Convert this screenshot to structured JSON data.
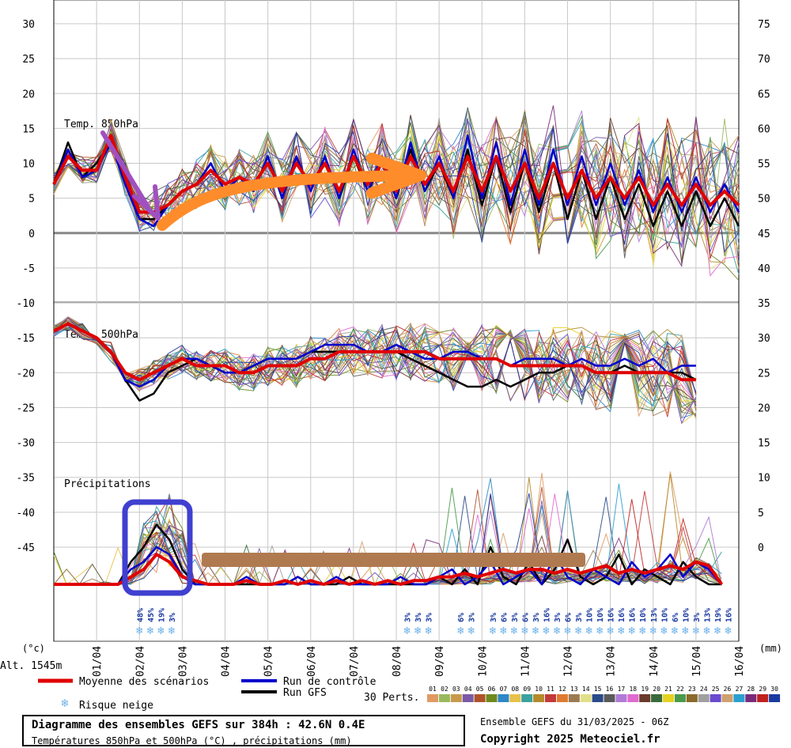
{
  "chart_data": {
    "type": "line",
    "left_unit": "(°c)",
    "right_unit": "(mm)",
    "altitude": "Alt. 1545m",
    "left_ticks": [
      30,
      25,
      20,
      15,
      10,
      5,
      0,
      -5,
      -10,
      -15,
      -20,
      -25,
      -30,
      -35,
      -40,
      -45
    ],
    "right_ticks": [
      75,
      70,
      65,
      60,
      55,
      50,
      45,
      40,
      35,
      30,
      25,
      20,
      15,
      10,
      5,
      0
    ],
    "dates": [
      "01/04",
      "02/04",
      "03/04",
      "04/04",
      "05/04",
      "06/04",
      "07/04",
      "08/04",
      "09/04",
      "10/04",
      "11/04",
      "12/04",
      "13/04",
      "14/04",
      "15/04",
      "16/04"
    ],
    "panel_labels": {
      "t850": "Temp. 850hPa",
      "t500": "Temp. 500hPa",
      "precip": "Précipitations"
    },
    "series": [
      {
        "name": "Moyenne des scénarios",
        "color": "#e00000",
        "t850": [
          7,
          11,
          9,
          9,
          14,
          8,
          3,
          3,
          4,
          6,
          7,
          9,
          7,
          8,
          7,
          10,
          6,
          10,
          7,
          10,
          6,
          11,
          7,
          10,
          6,
          11,
          7,
          10,
          6,
          11,
          6,
          11,
          6,
          10,
          5,
          10,
          5,
          9,
          5,
          8,
          5,
          8,
          4,
          7,
          4,
          7,
          4,
          6,
          4
        ],
        "t500": [
          -14,
          -13,
          -14,
          -15,
          -17,
          -20,
          -21,
          -20,
          -19,
          -18,
          -19,
          -19,
          -19,
          -20,
          -20,
          -19,
          -19,
          -19,
          -18,
          -18,
          -17,
          -17,
          -17,
          -17,
          -17,
          -17,
          -17,
          -18,
          -18,
          -18,
          -18,
          -18,
          -19,
          -19,
          -19,
          -19,
          -19,
          -19,
          -20,
          -20,
          -20,
          -20,
          -20,
          -20,
          -21,
          -21
        ],
        "precip": [
          0,
          0,
          0,
          0,
          0,
          0,
          1,
          2,
          4,
          3,
          1,
          0.5,
          0,
          0,
          0,
          0.5,
          0,
          0,
          0.5,
          0,
          0.5,
          0,
          0.5,
          0,
          0.5,
          0,
          0.5,
          0,
          0.5,
          0.5,
          1,
          1,
          1.5,
          1,
          1.5,
          2,
          1.5,
          2,
          2,
          1.5,
          2,
          1.5,
          2,
          2.5,
          1.5,
          2,
          1.5,
          2,
          2.5,
          2,
          3,
          2.5,
          0
        ]
      },
      {
        "name": "Run de contrôle",
        "color": "#0000cc",
        "t850": [
          7,
          12,
          8,
          9,
          13,
          7,
          2,
          1,
          4,
          6,
          7,
          10,
          6,
          8,
          6,
          11,
          5,
          11,
          6,
          11,
          5,
          12,
          6,
          11,
          5,
          13,
          6,
          11,
          5,
          14,
          5,
          13,
          4,
          12,
          4,
          12,
          4,
          11,
          4,
          10,
          4,
          9,
          3,
          8,
          3,
          8,
          3,
          7,
          3
        ],
        "t500": [
          -14,
          -13,
          -14,
          -15,
          -17,
          -21,
          -22,
          -21,
          -19,
          -18,
          -18,
          -19,
          -20,
          -20,
          -19,
          -18,
          -18,
          -18,
          -17,
          -16,
          -16,
          -16,
          -17,
          -17,
          -16,
          -17,
          -18,
          -18,
          -17,
          -17,
          -18,
          -18,
          -19,
          -18,
          -18,
          -18,
          -19,
          -18,
          -19,
          -19,
          -18,
          -19,
          -18,
          -20,
          -19,
          -19
        ],
        "precip": [
          0,
          0,
          0,
          0,
          0,
          0,
          2,
          3,
          5,
          4,
          1,
          0,
          0,
          0,
          0,
          1,
          0,
          0,
          0,
          1,
          0,
          0,
          1,
          0,
          0,
          0,
          0,
          1,
          0,
          0,
          1,
          2,
          0,
          1,
          3,
          0,
          1,
          2,
          0,
          4,
          1,
          0,
          2,
          1,
          0,
          3,
          1,
          2,
          4,
          1,
          3,
          2,
          0
        ]
      },
      {
        "name": "Run GFS",
        "color": "#000000",
        "t850": [
          7,
          13,
          8,
          10,
          13,
          7,
          2,
          2,
          4,
          6,
          7,
          10,
          6,
          8,
          6,
          11,
          5,
          11,
          6,
          11,
          5,
          11,
          6,
          10,
          5,
          12,
          6,
          10,
          5,
          12,
          4,
          11,
          3,
          10,
          3,
          10,
          2,
          9,
          2,
          8,
          2,
          7,
          1,
          6,
          1,
          6,
          1,
          5,
          1
        ],
        "t500": [
          -14,
          -13,
          -14,
          -15,
          -17,
          -21,
          -24,
          -23,
          -20,
          -19,
          -18,
          -19,
          -20,
          -20,
          -19,
          -18,
          -18,
          -18,
          -17,
          -17,
          -17,
          -17,
          -17,
          -17,
          -17,
          -18,
          -19,
          -20,
          -21,
          -22,
          -22,
          -21,
          -22,
          -21,
          -20,
          -20,
          -19,
          -19,
          -20,
          -20,
          -19,
          -20,
          -20,
          -20,
          -20,
          -21
        ],
        "precip": [
          0,
          0,
          0,
          0,
          0,
          0,
          3,
          5,
          8,
          6,
          2,
          0,
          0,
          0,
          0,
          0,
          0,
          0,
          0,
          1,
          0,
          0,
          0,
          1,
          0,
          0,
          0,
          0,
          0,
          0,
          1,
          0,
          2,
          0,
          5,
          1,
          0,
          3,
          0,
          2,
          6,
          1,
          0,
          1,
          4,
          0,
          2,
          1,
          0,
          3,
          1,
          0,
          0
        ]
      }
    ],
    "snow_risk": [
      {
        "day": 2.0,
        "pct": "48%"
      },
      {
        "day": 2.25,
        "pct": "45%"
      },
      {
        "day": 2.5,
        "pct": "19%"
      },
      {
        "day": 2.75,
        "pct": "3%"
      },
      {
        "day": 8.25,
        "pct": "3%"
      },
      {
        "day": 8.5,
        "pct": "3%"
      },
      {
        "day": 8.75,
        "pct": "3%"
      },
      {
        "day": 9.5,
        "pct": "6%"
      },
      {
        "day": 9.75,
        "pct": "3%"
      },
      {
        "day": 10.25,
        "pct": "3%"
      },
      {
        "day": 10.5,
        "pct": "6%"
      },
      {
        "day": 10.75,
        "pct": "3%"
      },
      {
        "day": 11.0,
        "pct": "6%"
      },
      {
        "day": 11.25,
        "pct": "3%"
      },
      {
        "day": 11.5,
        "pct": "16%"
      },
      {
        "day": 11.75,
        "pct": "3%"
      },
      {
        "day": 12.0,
        "pct": "6%"
      },
      {
        "day": 12.25,
        "pct": "3%"
      },
      {
        "day": 12.5,
        "pct": "10%"
      },
      {
        "day": 12.75,
        "pct": "10%"
      },
      {
        "day": 13.0,
        "pct": "16%"
      },
      {
        "day": 13.25,
        "pct": "16%"
      },
      {
        "day": 13.5,
        "pct": "16%"
      },
      {
        "day": 13.75,
        "pct": "10%"
      },
      {
        "day": 14.0,
        "pct": "13%"
      },
      {
        "day": 14.25,
        "pct": "10%"
      },
      {
        "day": 14.5,
        "pct": "6%"
      },
      {
        "day": 14.75,
        "pct": "10%"
      },
      {
        "day": 15.0,
        "pct": "3%"
      },
      {
        "day": 15.25,
        "pct": "13%"
      },
      {
        "day": 15.5,
        "pct": "19%"
      },
      {
        "day": 15.75,
        "pct": "16%"
      }
    ],
    "perts_label": "30 Perts.",
    "perts": [
      {
        "n": "01",
        "c": "#e09a63"
      },
      {
        "n": "02",
        "c": "#9ab95e"
      },
      {
        "n": "03",
        "c": "#c79a4a"
      },
      {
        "n": "04",
        "c": "#7b5aa6"
      },
      {
        "n": "05",
        "c": "#b0522a"
      },
      {
        "n": "06",
        "c": "#6e8a1e"
      },
      {
        "n": "07",
        "c": "#2f86c8"
      },
      {
        "n": "08",
        "c": "#e6c24a"
      },
      {
        "n": "09",
        "c": "#3aa2a0"
      },
      {
        "n": "10",
        "c": "#b58a2a"
      },
      {
        "n": "11",
        "c": "#c23a3a"
      },
      {
        "n": "12",
        "c": "#e07a30"
      },
      {
        "n": "13",
        "c": "#9c7a52"
      },
      {
        "n": "14",
        "c": "#e0e08a"
      },
      {
        "n": "15",
        "c": "#2a4a8a"
      },
      {
        "n": "16",
        "c": "#5a5a5a"
      },
      {
        "n": "17",
        "c": "#b07ad6"
      },
      {
        "n": "18",
        "c": "#e06ad0"
      },
      {
        "n": "19",
        "c": "#6a3a2a"
      },
      {
        "n": "20",
        "c": "#3a6a3a"
      },
      {
        "n": "21",
        "c": "#e6d220"
      },
      {
        "n": "22",
        "c": "#4a9a4a"
      },
      {
        "n": "23",
        "c": "#8a6a2a"
      },
      {
        "n": "24",
        "c": "#a0a0a0"
      },
      {
        "n": "25",
        "c": "#6a4ad0"
      },
      {
        "n": "26",
        "c": "#d0a070"
      },
      {
        "n": "27",
        "c": "#2aa0d0"
      },
      {
        "n": "28",
        "c": "#7a2a7a"
      },
      {
        "n": "29",
        "c": "#c02020"
      },
      {
        "n": "30",
        "c": "#1a3aa0"
      }
    ]
  },
  "legend": {
    "mean": "Moyenne des scénarios",
    "control": "Run de contrôle",
    "gfs": "Run GFS",
    "snow": "Risque neige"
  },
  "footer": {
    "title": "Diagramme des ensembles GEFS sur 384h : 42.6N 0.4E",
    "subtitle": "Températures 850hPa et 500hPa (°C) , précipitations (mm)",
    "ensemble": "Ensemble GEFS du 31/03/2025 - 06Z",
    "copyright": "Copyright 2025 Meteociel.fr"
  },
  "annotations": {
    "purple_arrow_color": "#a050c0",
    "orange_arrow_color": "#ff8c2a",
    "blue_box_color": "#4040d0",
    "brown_bar_color": "#b07a50"
  }
}
